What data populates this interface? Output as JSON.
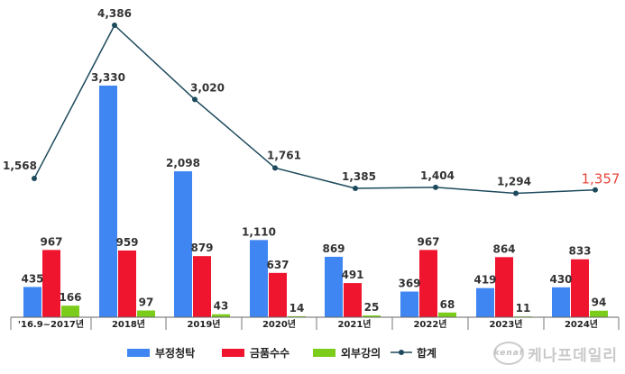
{
  "chart_data": {
    "type": "bar",
    "categories": [
      "'16.9~2017년",
      "2018년",
      "2019년",
      "2020년",
      "2021년",
      "2022년",
      "2023년",
      "2024년"
    ],
    "series": [
      {
        "name": "부정청탁",
        "values": [
          435,
          3330,
          2098,
          1110,
          869,
          369,
          419,
          430
        ],
        "color": "#3f86f2"
      },
      {
        "name": "금품수수",
        "values": [
          967,
          959,
          879,
          637,
          491,
          967,
          864,
          833
        ],
        "color": "#f0152f"
      },
      {
        "name": "외부강의",
        "values": [
          166,
          97,
          43,
          14,
          25,
          68,
          11,
          94
        ],
        "color": "#7ccc1c"
      }
    ],
    "line": {
      "name": "합계",
      "type": "line",
      "values": [
        1568,
        4386,
        3020,
        1761,
        1385,
        1404,
        1294,
        1357
      ],
      "color": "#1d4a5c",
      "highlight_color": "#e8463c"
    },
    "value_labels": {
      "series": [
        [
          "435",
          "3,330",
          "2,098",
          "1,110",
          "869",
          "369",
          "419",
          "430"
        ],
        [
          "967",
          "959",
          "879",
          "637",
          "491",
          "967",
          "864",
          "833"
        ],
        [
          "166",
          "97",
          "43",
          "14",
          "25",
          "68",
          "11",
          "94"
        ]
      ],
      "line": [
        "1,568",
        "4,386",
        "3,020",
        "1,761",
        "1,385",
        "1,404",
        "1,294",
        "1,357"
      ]
    },
    "legend_position": "bottom",
    "grid": false
  },
  "watermark": {
    "badge": "kenaf",
    "text": "케나프데일리"
  }
}
